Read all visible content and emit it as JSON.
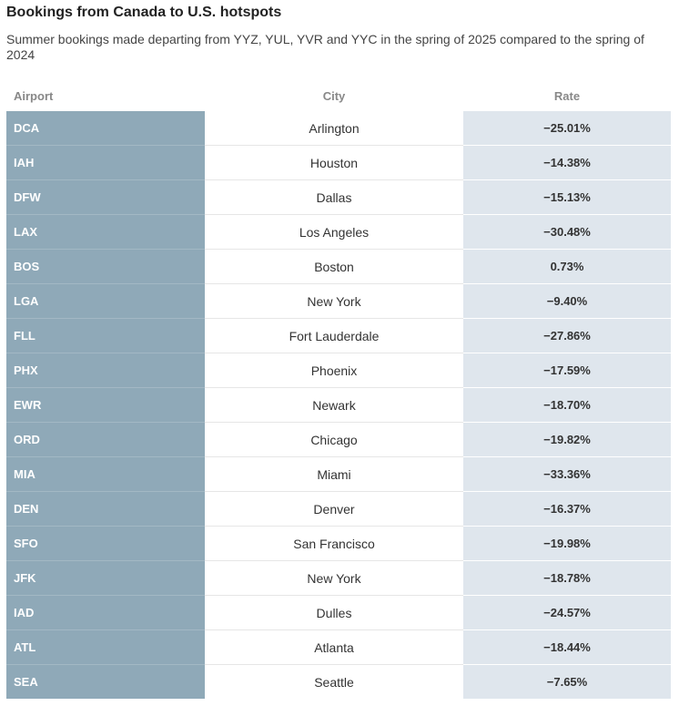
{
  "chart_data": {
    "type": "table",
    "title": "Bookings from Canada to U.S. hotspots",
    "subtitle": "Summer bookings made departing from YYZ, YUL, YVR and YYC in the spring of 2025 compared to the spring of 2024",
    "columns": [
      "Airport",
      "City",
      "Rate"
    ],
    "rows": [
      {
        "airport": "DCA",
        "city": "Arlington",
        "rate": "−25.01%"
      },
      {
        "airport": "IAH",
        "city": "Houston",
        "rate": "−14.38%"
      },
      {
        "airport": "DFW",
        "city": "Dallas",
        "rate": "−15.13%"
      },
      {
        "airport": "LAX",
        "city": "Los Angeles",
        "rate": "−30.48%"
      },
      {
        "airport": "BOS",
        "city": "Boston",
        "rate": "0.73%"
      },
      {
        "airport": "LGA",
        "city": "New York",
        "rate": "−9.40%"
      },
      {
        "airport": "FLL",
        "city": "Fort Lauderdale",
        "rate": "−27.86%"
      },
      {
        "airport": "PHX",
        "city": "Phoenix",
        "rate": "−17.59%"
      },
      {
        "airport": "EWR",
        "city": "Newark",
        "rate": "−18.70%"
      },
      {
        "airport": "ORD",
        "city": "Chicago",
        "rate": "−19.82%"
      },
      {
        "airport": "MIA",
        "city": "Miami",
        "rate": "−33.36%"
      },
      {
        "airport": "DEN",
        "city": "Denver",
        "rate": "−16.37%"
      },
      {
        "airport": "SFO",
        "city": "San Francisco",
        "rate": "−19.98%"
      },
      {
        "airport": "JFK",
        "city": "New York",
        "rate": "−18.78%"
      },
      {
        "airport": "IAD",
        "city": "Dulles",
        "rate": "−24.57%"
      },
      {
        "airport": "ATL",
        "city": "Atlanta",
        "rate": "−18.44%"
      },
      {
        "airport": "SEA",
        "city": "Seattle",
        "rate": "−7.65%"
      }
    ]
  },
  "colors": {
    "airport_column": "#8fa9b8",
    "rate_column": "#dfe6ed",
    "header_text": "#888888"
  }
}
